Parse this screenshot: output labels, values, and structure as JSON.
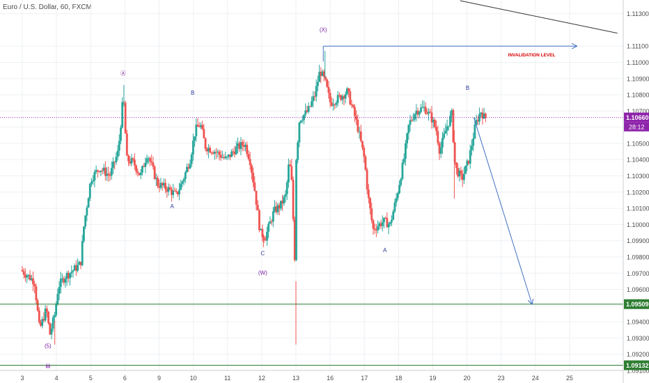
{
  "symbol_title": "Euro / U.S. Dollar, 60, FXCM",
  "colors": {
    "up": "#26a69a",
    "down": "#ef5350",
    "wave_label": "#7b1fa2",
    "sub_label": "#283593",
    "projection": "#3f6fc2",
    "support": "#2e7d32",
    "current_price": "#8e24aa",
    "invalidation": "#d50000",
    "grid": "#eef0f3",
    "axis_text": "#4a4a4a"
  },
  "chart_data": {
    "type": "candlestick",
    "timeframe": "60",
    "x_tick_labels": [
      "3",
      "4",
      "5",
      "6",
      "9",
      "10",
      "11",
      "12",
      "13",
      "16",
      "17",
      "18",
      "19",
      "20",
      "23",
      "24",
      "25"
    ],
    "x_range": [
      0,
      17.4
    ],
    "y_tick_labels": [
      "1.11300",
      "1.11100",
      "1.11000",
      "1.10900",
      "1.10800",
      "1.10700",
      "1.10600",
      "1.10500",
      "1.10400",
      "1.10300",
      "1.10200",
      "1.10100",
      "1.10000",
      "1.09900",
      "1.09800",
      "1.09700",
      "1.09600",
      "1.09500",
      "1.09400",
      "1.09300",
      "1.09200",
      "1.09100"
    ],
    "y_range": [
      1.091,
      1.1135
    ],
    "price_path": [
      [
        0.0,
        1.0972
      ],
      [
        0.4,
        1.0965
      ],
      [
        0.55,
        1.0935
      ],
      [
        0.75,
        1.0948
      ],
      [
        0.85,
        1.0932
      ],
      [
        1.0,
        1.0945
      ],
      [
        1.1,
        1.0962
      ],
      [
        1.3,
        1.0968
      ],
      [
        1.6,
        1.0973
      ],
      [
        1.75,
        1.0976
      ],
      [
        1.85,
        1.1
      ],
      [
        2.05,
        1.1028
      ],
      [
        2.3,
        1.1035
      ],
      [
        2.6,
        1.103
      ],
      [
        2.85,
        1.1045
      ],
      [
        2.95,
        1.1068
      ],
      [
        3.0,
        1.108
      ],
      [
        3.1,
        1.104
      ],
      [
        3.3,
        1.1038
      ],
      [
        3.5,
        1.103
      ],
      [
        3.7,
        1.1044
      ],
      [
        4.0,
        1.1025
      ],
      [
        4.3,
        1.1022
      ],
      [
        4.55,
        1.1018
      ],
      [
        4.75,
        1.1028
      ],
      [
        4.95,
        1.104
      ],
      [
        5.1,
        1.1058
      ],
      [
        5.25,
        1.1062
      ],
      [
        5.4,
        1.1048
      ],
      [
        5.7,
        1.1045
      ],
      [
        6.0,
        1.104
      ],
      [
        6.3,
        1.1047
      ],
      [
        6.55,
        1.105
      ],
      [
        6.7,
        1.104
      ],
      [
        6.85,
        1.102
      ],
      [
        7.0,
        1.0995
      ],
      [
        7.15,
        1.0992
      ],
      [
        7.4,
        1.1008
      ],
      [
        7.6,
        1.1012
      ],
      [
        7.75,
        1.1018
      ],
      [
        7.85,
        1.104
      ],
      [
        7.95,
        1.102
      ],
      [
        8.0,
        1.0965
      ],
      [
        8.05,
        1.104
      ],
      [
        8.15,
        1.1065
      ],
      [
        8.4,
        1.107
      ],
      [
        8.6,
        1.108
      ],
      [
        8.75,
        1.1095
      ],
      [
        8.9,
        1.1088
      ],
      [
        9.05,
        1.1075
      ],
      [
        9.3,
        1.1078
      ],
      [
        9.55,
        1.1082
      ],
      [
        9.75,
        1.1068
      ],
      [
        9.85,
        1.106
      ],
      [
        10.05,
        1.104
      ],
      [
        10.15,
        1.1018
      ],
      [
        10.3,
        1.0997
      ],
      [
        10.6,
        1.1002
      ],
      [
        10.8,
        1.1
      ],
      [
        11.0,
        1.1018
      ],
      [
        11.2,
        1.104
      ],
      [
        11.35,
        1.1062
      ],
      [
        11.55,
        1.107
      ],
      [
        11.8,
        1.1072
      ],
      [
        12.0,
        1.1066
      ],
      [
        12.15,
        1.1058
      ],
      [
        12.25,
        1.1045
      ],
      [
        12.45,
        1.106
      ],
      [
        12.6,
        1.1068
      ],
      [
        12.7,
        1.1035
      ],
      [
        12.9,
        1.1028
      ],
      [
        13.1,
        1.104
      ],
      [
        13.3,
        1.1062
      ],
      [
        13.45,
        1.107
      ],
      [
        13.55,
        1.1066
      ]
    ],
    "price_levels": [
      {
        "name": "support-1",
        "price": 1.09509,
        "label": "1.09509",
        "color": "#2e7d32"
      },
      {
        "name": "support-2",
        "price": 1.09132,
        "label": "1.09132",
        "color": "#2e7d32"
      },
      {
        "name": "current-price",
        "price": 1.1066,
        "label": "1.10660",
        "color": "#8e24aa"
      }
    ],
    "countdown_label": "28:12",
    "wave_labels": [
      {
        "text": "Ⓐ",
        "x": 2.95,
        "y": 1.1092
      },
      {
        "text": "B",
        "x": 4.98,
        "y": 1.108
      },
      {
        "text": "A",
        "x": 4.38,
        "y": 1.101
      },
      {
        "text": "C",
        "x": 7.03,
        "y": 1.0981
      },
      {
        "text": "(W)",
        "x": 7.03,
        "y": 1.0969
      },
      {
        "text": "(X)",
        "x": 8.8,
        "y": 1.1119
      },
      {
        "text": "A",
        "x": 10.6,
        "y": 1.0983
      },
      {
        "text": "B",
        "x": 13.02,
        "y": 1.1083
      },
      {
        "text": "(5)",
        "x": 0.75,
        "y": 1.0924
      },
      {
        "text": "iii",
        "x": 0.75,
        "y": 1.09115
      }
    ],
    "invalidation_level": {
      "label": "INVALIDATION LEVEL",
      "price": 1.111,
      "x_start": 8.8,
      "x_end": 16.2
    },
    "projection_arrow": {
      "from": [
        13.2,
        1.1066
      ],
      "to": [
        14.9,
        1.0951
      ]
    },
    "trend_line": {
      "from": [
        12.8,
        1.1138
      ],
      "to": [
        17.4,
        1.1118
      ]
    }
  }
}
